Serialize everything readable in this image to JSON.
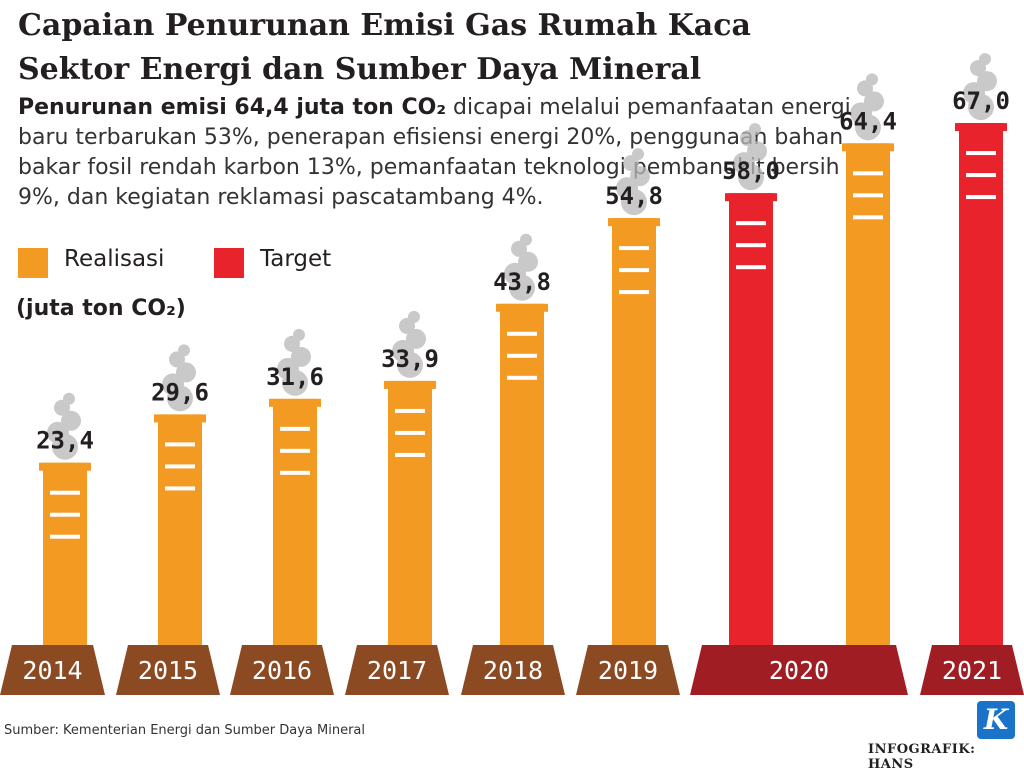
{
  "header": {
    "title_line1": "Capaian Penurunan Emisi Gas Rumah Kaca",
    "title_line2": "Sektor Energi dan Sumber Daya Mineral"
  },
  "description": {
    "bold": "Penurunan emisi 64,4 juta ton CO₂",
    "text": " dicapai melalui pemanfaatan energi baru terbarukan 53%, penerapan efisiensi energi 20%, penggunaan bahan bakar fosil rendah karbon 13%, pemanfaatan teknologi pembangkit bersih 9%, dan kegiatan reklamasi pascatambang 4%."
  },
  "legend": {
    "realisasi": "Realisasi",
    "target": "Target"
  },
  "unit_label": "(juta ton CO₂)",
  "colors": {
    "realisasi": "#f39a23",
    "target": "#e8232c",
    "realisasi_base": "#8b4a22",
    "target_base": "#a11d24",
    "smoke": "#b8b8b8"
  },
  "chart_data": {
    "type": "bar",
    "categories": [
      "2014",
      "2015",
      "2016",
      "2017",
      "2018",
      "2019",
      "2020",
      "2021"
    ],
    "series": [
      {
        "name": "Realisasi",
        "values": [
          23.4,
          29.6,
          31.6,
          33.9,
          43.8,
          54.8,
          64.4,
          null
        ]
      },
      {
        "name": "Target",
        "values": [
          null,
          null,
          null,
          null,
          null,
          null,
          58.0,
          67.0
        ]
      }
    ],
    "value_labels": [
      "23,4",
      "29,6",
      "31,6",
      "33,9",
      "43,8",
      "54,8",
      "58,0",
      "64,4",
      "67,0"
    ],
    "title": "Capaian Penurunan Emisi Gas Rumah Kaca Sektor Energi dan Sumber Daya Mineral",
    "ylabel": "(juta ton CO₂)",
    "xlabel": "",
    "legend_position": "top-left"
  },
  "footer": {
    "source": "Sumber: Kementerian Energi dan Sumber Daya Mineral",
    "credit": "INFOGRAFIK: HANS",
    "logo": "K"
  }
}
